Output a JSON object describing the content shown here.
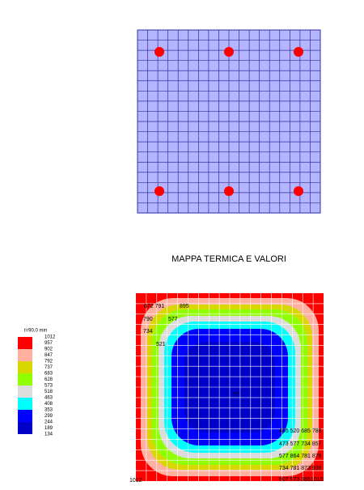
{
  "title": "MAPPA TERMICA E VALORI",
  "legend": {
    "header": "t=90.0 min",
    "labels": [
      1012,
      957,
      902,
      847,
      792,
      737,
      683,
      628,
      573,
      518,
      463,
      408,
      353,
      299,
      244,
      189,
      134
    ]
  },
  "map_labels": [
    "672 791",
    "895",
    "790",
    "577",
    "734",
    "521",
    "??",
    "405 520 685 788",
    "473 577 734 857",
    "577 864 781 878",
    "734 781 873 936",
    "907 973 9851010",
    "1012"
  ]
}
